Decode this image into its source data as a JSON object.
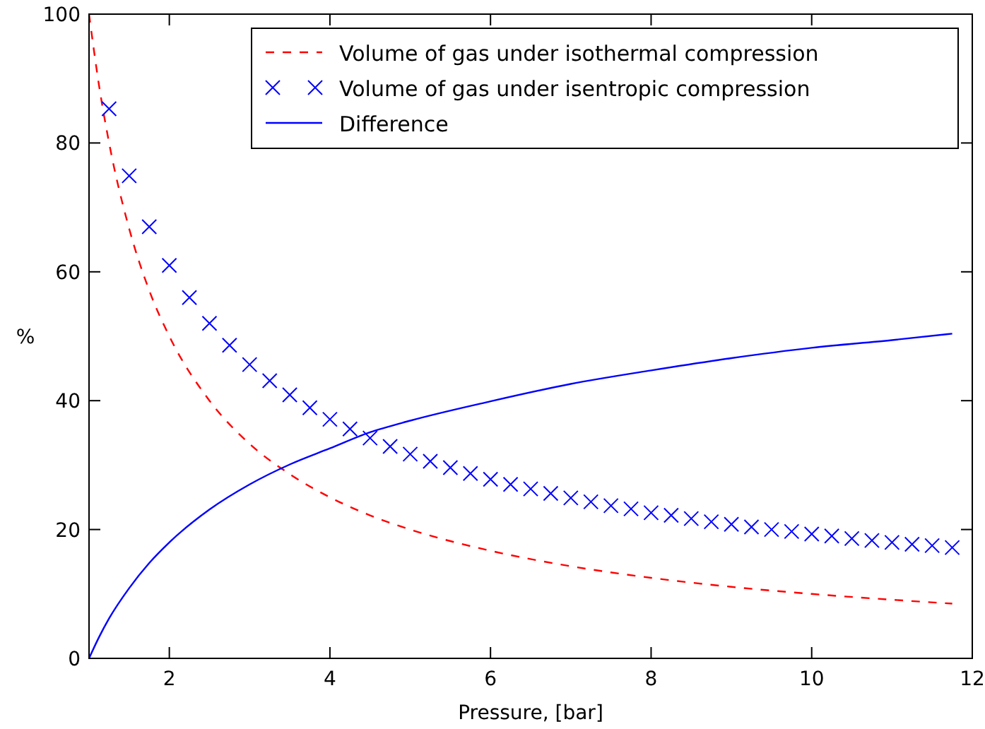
{
  "chart_data": {
    "type": "line",
    "xlabel": "Pressure, [bar]",
    "ylabel": "%",
    "xlim": [
      1,
      12
    ],
    "xticks": [
      2,
      4,
      6,
      8,
      10,
      12
    ],
    "ylim": [
      0,
      100
    ],
    "yticks": [
      0,
      20,
      40,
      60,
      80,
      100
    ],
    "grid": false,
    "legend": "top right",
    "series": [
      {
        "name": "Volume of gas under isothermal compression",
        "type": "line",
        "line_style": "dashed",
        "color": "#ff0000",
        "x": [
          1,
          1.125,
          1.25,
          1.5,
          1.75,
          2,
          2.5,
          3,
          3.5,
          4,
          4.5,
          5,
          6,
          7,
          8,
          9,
          10,
          11,
          11.75
        ],
        "values": [
          100,
          88.9,
          80,
          66.7,
          57.1,
          50,
          40,
          33.3,
          28.6,
          25,
          22.2,
          20,
          16.7,
          14.3,
          12.5,
          11.1,
          10,
          9.1,
          8.5
        ]
      },
      {
        "name": "Volume of gas under isentropic compression",
        "type": "scatter",
        "marker": "cross",
        "color": "#0000ff",
        "x": [
          1.25,
          1.5,
          1.75,
          2,
          2.25,
          2.5,
          2.75,
          3,
          3.25,
          3.5,
          3.75,
          4,
          4.25,
          4.5,
          4.75,
          5,
          5.25,
          5.5,
          5.75,
          6,
          6.25,
          6.5,
          6.75,
          7,
          7.25,
          7.5,
          7.75,
          8,
          8.25,
          8.5,
          8.75,
          9,
          9.25,
          9.5,
          9.75,
          10,
          10.25,
          10.5,
          10.75,
          11,
          11.25,
          11.5,
          11.75
        ],
        "values": [
          85.3,
          74.9,
          67.0,
          61.0,
          56.0,
          52.0,
          48.6,
          45.6,
          43.1,
          40.9,
          38.9,
          37.1,
          35.6,
          34.2,
          32.9,
          31.7,
          30.6,
          29.6,
          28.7,
          27.8,
          27.0,
          26.3,
          25.6,
          24.9,
          24.3,
          23.7,
          23.2,
          22.6,
          22.2,
          21.7,
          21.2,
          20.8,
          20.4,
          20.0,
          19.7,
          19.3,
          19.0,
          18.6,
          18.3,
          18.0,
          17.7,
          17.5,
          17.2
        ]
      },
      {
        "name": "Difference",
        "type": "line",
        "line_style": "solid",
        "color": "#0000ff",
        "x": [
          1,
          1.125,
          1.25,
          1.5,
          1.75,
          2,
          2.5,
          3,
          3.5,
          4,
          4.5,
          5,
          6,
          7,
          8,
          9,
          10,
          11,
          11.75
        ],
        "values": [
          0,
          3.3,
          6.2,
          10.9,
          14.8,
          18.0,
          23.1,
          27.0,
          30.1,
          32.6,
          35.1,
          36.9,
          39.9,
          42.6,
          44.7,
          46.6,
          48.2,
          49.4,
          50.4
        ]
      }
    ]
  }
}
